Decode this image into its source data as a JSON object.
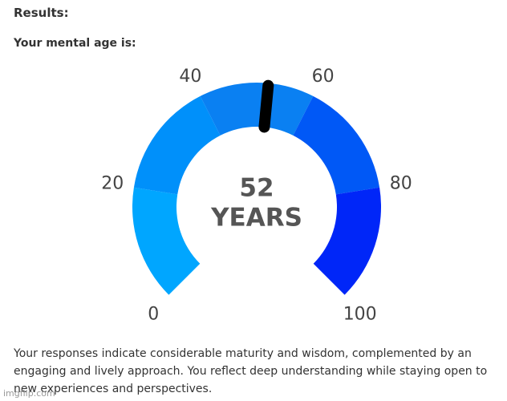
{
  "heading": "Results:",
  "subheading": "Your mental age is:",
  "chart_data": {
    "type": "gauge",
    "value": 52,
    "unit": "YEARS",
    "lim": [
      0,
      100
    ],
    "ticks": [
      0,
      20,
      40,
      60,
      80,
      100
    ],
    "band_colors": [
      "#00a6ff",
      "#0090fa",
      "#0a80f2",
      "#0058f6",
      "#0026f8"
    ],
    "needle_color": "#000000"
  },
  "description": "Your responses indicate considerable maturity and wisdom, complemented by an engaging and lively approach. You reflect deep understanding while staying open to new experiences and perspectives.",
  "watermark": "imgflip.com"
}
